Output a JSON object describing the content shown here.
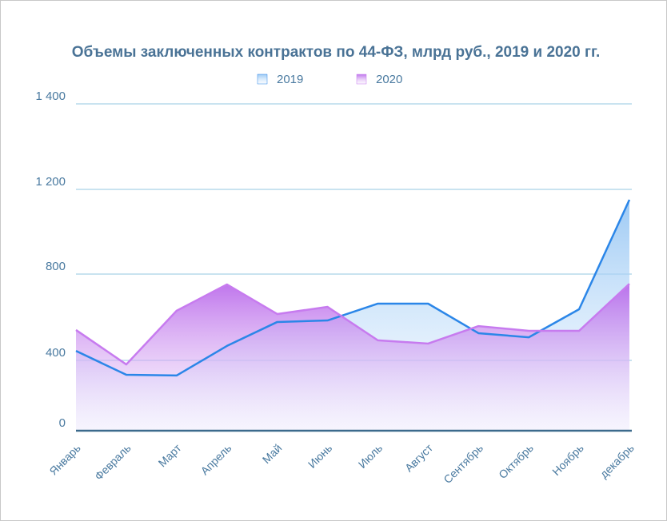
{
  "chart_data": {
    "type": "area",
    "title": "Объемы заключенных контрактов по 44-ФЗ, млрд руб., 2019 и 2020 гг.",
    "categories": [
      "Январь",
      "Февраль",
      "Март",
      "Апрель",
      "Май",
      "Июнь",
      "Июль",
      "Август",
      "Сентябрь",
      "Октябрь",
      "Ноябрь",
      "декабрь"
    ],
    "series": [
      {
        "name": "2019",
        "color": "#2b86e8",
        "values": [
          444,
          318,
          314,
          467,
          578,
          585,
          663,
          663,
          526,
          507,
          637,
          1151
        ]
      },
      {
        "name": "2020",
        "color": "#c77bef",
        "values": [
          541,
          377,
          630,
          752,
          615,
          648,
          493,
          478,
          559,
          537,
          537,
          755
        ]
      }
    ],
    "ylim": [
      0,
      1400
    ],
    "yticks": [
      0,
      {
        "value": 400,
        "label": "400"
      },
      {
        "value": 800,
        "label": "800"
      },
      {
        "value": 1200,
        "label": "1 200"
      },
      {
        "value": 1400,
        "label": "1 400"
      }
    ],
    "grid": true
  }
}
